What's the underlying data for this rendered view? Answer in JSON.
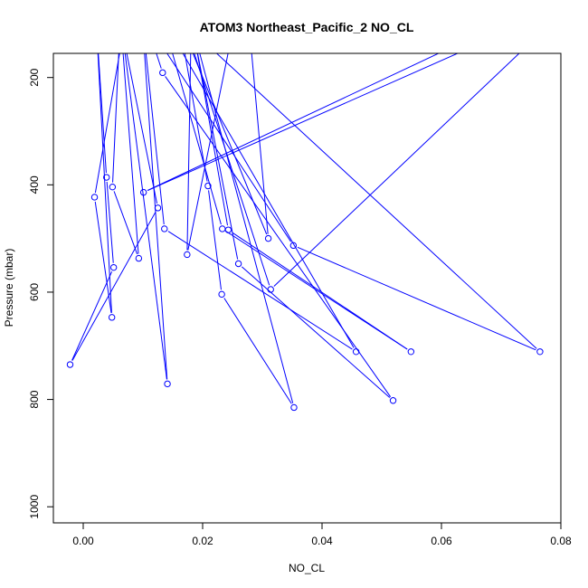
{
  "chart_data": {
    "type": "line",
    "title": "ATOM3 Northeast_Pacific_2 NO_CL",
    "xlabel": "NO_CL",
    "ylabel": "Pressure (mbar)",
    "xlim": [
      -0.005,
      0.08
    ],
    "ylim": [
      1030,
      155
    ],
    "y_reversed": true,
    "x_ticks": [
      0.0,
      0.02,
      0.04,
      0.06,
      0.08
    ],
    "x_tick_labels": [
      "0.00",
      "0.02",
      "0.04",
      "0.06",
      "0.08"
    ],
    "y_ticks": [
      200,
      400,
      600,
      800,
      1000
    ],
    "y_tick_labels": [
      "200",
      "400",
      "600",
      "800",
      "1000"
    ],
    "grid": false,
    "series": [
      {
        "color": "#0000ff",
        "points": [
          {
            "x": 0.0068,
            "y": 110
          },
          {
            "x": 0.0019,
            "y": 423
          },
          {
            "x": 0.0048,
            "y": 647
          },
          {
            "x": 0.0022,
            "y": 100
          },
          {
            "x": 0.0039,
            "y": 386
          },
          {
            "x": 0.0051,
            "y": 554
          },
          {
            "x": -0.0022,
            "y": 735
          },
          {
            "x": 0.0125,
            "y": 443
          },
          {
            "x": 0.0062,
            "y": 95
          },
          {
            "x": 0.0049,
            "y": 404
          },
          {
            "x": 0.0093,
            "y": 537
          },
          {
            "x": 0.0062,
            "y": 85
          },
          {
            "x": 0.0141,
            "y": 771
          },
          {
            "x": 0.0098,
            "y": 80
          },
          {
            "x": 0.0136,
            "y": 482
          },
          {
            "x": 0.0457,
            "y": 711
          },
          {
            "x": 0.0133,
            "y": 90
          },
          {
            "x": 0.0233,
            "y": 482
          },
          {
            "x": 0.0549,
            "y": 711
          },
          {
            "x": 0.0243,
            "y": 484
          },
          {
            "x": 0.0181,
            "y": 90
          },
          {
            "x": 0.0174,
            "y": 530
          },
          {
            "x": 0.027,
            "y": 5
          },
          {
            "x": 0.031,
            "y": 500
          },
          {
            "x": 0.016,
            "y": 90
          },
          {
            "x": 0.0209,
            "y": 402
          },
          {
            "x": 0.0232,
            "y": 604
          },
          {
            "x": 0.0353,
            "y": 815
          },
          {
            "x": 0.0182,
            "y": 100
          },
          {
            "x": 0.026,
            "y": 547
          },
          {
            "x": 0.0519,
            "y": 802
          },
          {
            "x": 0.0133,
            "y": 191
          },
          {
            "x": 0.0105,
            "y": 95
          },
          {
            "x": 0.0352,
            "y": 513
          },
          {
            "x": 0.0765,
            "y": 711
          },
          {
            "x": 0.017,
            "y": 100
          },
          {
            "x": 0.0314,
            "y": 595
          },
          {
            "x": 0.082,
            "y": 60
          },
          {
            "x": 0.0101,
            "y": 414
          },
          {
            "x": 0.07,
            "y": 100
          }
        ]
      }
    ]
  }
}
